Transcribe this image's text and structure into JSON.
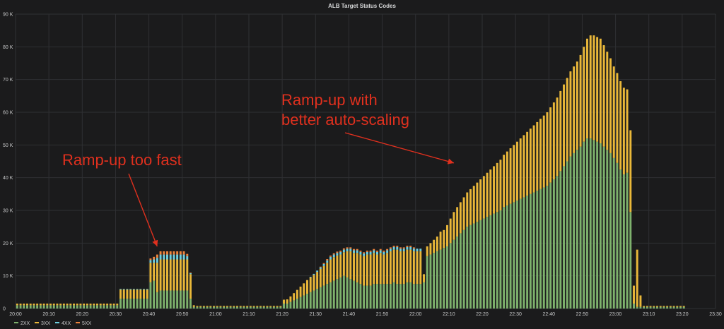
{
  "chart_data": {
    "type": "bar",
    "stacked": true,
    "title": "ALB Target Status Codes",
    "ylim": [
      0,
      90000
    ],
    "y_ticks": [
      0,
      10000,
      20000,
      30000,
      40000,
      50000,
      60000,
      70000,
      80000,
      90000
    ],
    "y_tick_labels": [
      "0",
      "10 K",
      "20 K",
      "30 K",
      "40 K",
      "50 K",
      "60 K",
      "70 K",
      "80 K",
      "90 K"
    ],
    "x_range_minutes": [
      0,
      210
    ],
    "x_ticks_minutes": [
      0,
      10,
      20,
      30,
      40,
      50,
      60,
      70,
      80,
      90,
      100,
      110,
      120,
      130,
      140,
      150,
      160,
      170,
      180,
      190,
      200,
      210
    ],
    "x_tick_labels": [
      "20:00",
      "20:10",
      "20:20",
      "20:30",
      "20:40",
      "20:50",
      "21:00",
      "21:10",
      "21:20",
      "21:30",
      "21:40",
      "21:50",
      "22:00",
      "22:10",
      "22:20",
      "22:30",
      "22:40",
      "22:50",
      "23:00",
      "23:10",
      "23:20",
      "23:30"
    ],
    "grid": true,
    "legend_position": "bottom-left",
    "series": [
      {
        "name": "2XX",
        "color": "#7eb26d",
        "values": [
          1000,
          1000,
          1000,
          1000,
          1000,
          1000,
          1000,
          1000,
          1000,
          1000,
          1000,
          1000,
          1000,
          1000,
          1000,
          1000,
          1000,
          1000,
          1000,
          1000,
          1000,
          1000,
          1000,
          1000,
          1000,
          1000,
          1000,
          1000,
          1000,
          1000,
          1000,
          3000,
          3000,
          3000,
          3000,
          3000,
          3000,
          3000,
          3000,
          3000,
          8000,
          8500,
          5000,
          5500,
          5500,
          5500,
          5500,
          5500,
          5500,
          5500,
          5500,
          5500,
          3000,
          500,
          500,
          500,
          500,
          500,
          500,
          500,
          500,
          500,
          500,
          500,
          500,
          500,
          500,
          500,
          500,
          500,
          500,
          500,
          500,
          500,
          500,
          500,
          500,
          500,
          500,
          500,
          1500,
          1500,
          2000,
          2500,
          3000,
          3500,
          4000,
          4500,
          5000,
          5500,
          6000,
          6500,
          7000,
          7500,
          8000,
          8500,
          9000,
          9500,
          10000,
          9500,
          9000,
          8500,
          8000,
          7500,
          7000,
          7000,
          7000,
          7500,
          7500,
          7500,
          7500,
          7500,
          7500,
          8000,
          7500,
          7500,
          7500,
          8000,
          8000,
          7500,
          7500,
          7500,
          8000,
          16000,
          16500,
          17000,
          17500,
          18000,
          18500,
          19000,
          20000,
          21000,
          22000,
          23000,
          24000,
          25000,
          25500,
          26000,
          26500,
          27000,
          27500,
          28000,
          28500,
          29000,
          29500,
          30000,
          31000,
          31500,
          32000,
          32500,
          33000,
          33500,
          34000,
          34500,
          35000,
          35500,
          36000,
          36500,
          37000,
          37500,
          38500,
          39500,
          40500,
          42000,
          43500,
          45000,
          46500,
          47500,
          48500,
          49500,
          51000,
          52000,
          52000,
          51500,
          51000,
          50500,
          49500,
          48500,
          47500,
          46000,
          44500,
          42500,
          41000,
          41500,
          29500,
          1500,
          500,
          500,
          500,
          500,
          500,
          500,
          500,
          500,
          500,
          500,
          500,
          500,
          500,
          500,
          500
        ],
        "values_note": ""
      },
      {
        "name": "3XX",
        "color": "#eab839",
        "values": [
          500,
          500,
          500,
          500,
          500,
          500,
          500,
          500,
          500,
          500,
          500,
          500,
          500,
          500,
          500,
          500,
          500,
          500,
          500,
          500,
          500,
          500,
          500,
          500,
          500,
          500,
          500,
          500,
          500,
          500,
          500,
          2800,
          2800,
          2800,
          2800,
          2800,
          2800,
          2800,
          2800,
          2800,
          6000,
          5500,
          9000,
          9500,
          9500,
          9500,
          9500,
          9500,
          9500,
          9500,
          9500,
          9500,
          7500,
          500,
          300,
          300,
          300,
          300,
          300,
          300,
          300,
          300,
          300,
          300,
          300,
          300,
          300,
          300,
          300,
          300,
          300,
          300,
          300,
          300,
          300,
          300,
          300,
          300,
          300,
          300,
          1200,
          1300,
          1700,
          2200,
          2700,
          3200,
          3700,
          4200,
          4500,
          4800,
          5200,
          5600,
          6000,
          6500,
          7000,
          7200,
          7200,
          7000,
          7200,
          8000,
          8500,
          8500,
          9000,
          9000,
          9000,
          9500,
          9500,
          9500,
          9000,
          9500,
          9000,
          9500,
          10000,
          10000,
          10500,
          10000,
          10000,
          10000,
          10000,
          10000,
          10000,
          10000,
          2500,
          3000,
          3500,
          4000,
          4500,
          5500,
          5500,
          6500,
          7500,
          8500,
          9000,
          9500,
          10000,
          10500,
          11000,
          11500,
          12000,
          12500,
          13000,
          13500,
          14000,
          14500,
          15000,
          15500,
          16000,
          16500,
          17000,
          17500,
          18000,
          18500,
          19000,
          19500,
          20000,
          20500,
          21000,
          21500,
          22000,
          22500,
          23000,
          23500,
          24000,
          24500,
          25000,
          25500,
          26000,
          26500,
          27000,
          28000,
          29000,
          30500,
          31500,
          32000,
          32000,
          32000,
          31000,
          30000,
          29000,
          28000,
          27500,
          27000,
          26500,
          25500,
          25000,
          5500,
          17500,
          3500,
          300,
          300,
          300,
          300,
          300,
          300,
          300,
          300,
          300,
          300,
          300,
          300,
          300,
          300,
          300,
          300
        ]
      },
      {
        "name": "4XX",
        "color": "#6ed0e0",
        "values": [
          0,
          0,
          0,
          0,
          0,
          0,
          0,
          0,
          0,
          0,
          0,
          0,
          0,
          0,
          0,
          0,
          0,
          0,
          0,
          0,
          0,
          0,
          0,
          0,
          0,
          0,
          0,
          0,
          0,
          0,
          0,
          200,
          200,
          200,
          200,
          200,
          200,
          200,
          200,
          200,
          800,
          1000,
          1500,
          1500,
          1500,
          1500,
          1500,
          1500,
          1500,
          1500,
          1500,
          1000,
          300,
          0,
          0,
          0,
          0,
          0,
          0,
          0,
          0,
          0,
          0,
          0,
          0,
          0,
          0,
          0,
          0,
          0,
          0,
          0,
          0,
          0,
          0,
          0,
          0,
          0,
          0,
          0,
          0,
          0,
          0,
          0,
          0,
          0,
          0,
          0,
          200,
          300,
          400,
          500,
          600,
          700,
          800,
          800,
          800,
          800,
          800,
          800,
          800,
          800,
          800,
          800,
          800,
          800,
          800,
          800,
          800,
          800,
          800,
          800,
          800,
          800,
          800,
          800,
          800,
          800,
          800,
          800,
          800,
          800,
          0,
          0,
          0,
          0,
          0,
          0,
          0,
          0,
          0,
          0,
          0,
          0,
          0,
          0,
          0,
          0,
          0,
          0,
          0,
          0,
          0,
          0,
          0,
          0,
          0,
          0,
          0,
          0,
          0,
          0,
          0,
          0,
          0,
          0,
          0,
          0,
          0,
          0,
          0,
          0,
          0,
          0,
          0,
          0,
          0,
          0,
          0,
          0,
          0,
          0,
          0,
          0,
          0,
          0,
          0,
          0,
          0,
          0,
          0,
          0,
          0,
          0,
          0,
          0,
          0,
          0,
          0,
          0,
          0,
          0,
          0,
          0,
          0,
          0,
          0,
          0,
          0,
          0,
          0,
          0,
          0,
          0,
          0,
          0,
          0,
          0,
          0,
          0,
          0,
          0,
          0,
          0,
          0,
          0,
          0
        ]
      },
      {
        "name": "5XX",
        "color": "#ef843c",
        "values": [
          0,
          0,
          0,
          0,
          0,
          0,
          0,
          0,
          0,
          0,
          0,
          0,
          0,
          0,
          0,
          0,
          0,
          0,
          0,
          0,
          0,
          0,
          0,
          0,
          0,
          0,
          0,
          0,
          0,
          0,
          0,
          0,
          0,
          0,
          0,
          0,
          0,
          0,
          0,
          0,
          500,
          800,
          1000,
          1000,
          1000,
          1000,
          1000,
          1000,
          1000,
          1000,
          1000,
          700,
          200,
          0,
          0,
          0,
          0,
          0,
          0,
          0,
          0,
          0,
          0,
          0,
          0,
          0,
          0,
          0,
          0,
          0,
          0,
          0,
          0,
          0,
          0,
          0,
          0,
          0,
          0,
          0,
          0,
          0,
          0,
          0,
          0,
          0,
          0,
          0,
          0,
          0,
          0,
          200,
          300,
          400,
          400,
          400,
          400,
          400,
          400,
          400,
          400,
          400,
          400,
          400,
          400,
          400,
          400,
          400,
          400,
          400,
          400,
          400,
          400,
          400,
          400,
          400,
          400,
          400,
          400,
          400,
          0,
          0,
          0,
          0,
          0,
          0,
          0,
          0,
          0,
          0,
          0,
          0,
          0,
          0,
          0,
          0,
          0,
          0,
          0,
          0,
          0,
          0,
          0,
          0,
          0,
          0,
          0,
          0,
          0,
          0,
          0,
          0,
          0,
          0,
          0,
          0,
          0,
          0,
          0,
          0,
          0,
          0,
          0,
          0,
          0,
          0,
          0,
          0,
          0,
          0,
          0,
          0,
          0,
          0,
          0,
          0,
          0,
          0,
          0,
          0,
          0,
          0,
          0,
          0,
          0,
          0,
          0,
          0,
          0,
          0,
          0,
          0,
          0,
          0,
          0,
          0,
          0,
          0,
          0,
          0,
          0,
          0,
          0,
          0,
          0,
          0,
          0,
          0,
          0,
          0,
          0,
          0,
          0,
          0,
          0,
          0,
          0
        ]
      }
    ],
    "annotations": [
      {
        "text": "Ramp-up too fast",
        "lines": [
          "Ramp-up too fast"
        ],
        "arrow_to_minute": 42,
        "arrow_to_value": 19000
      },
      {
        "text": "Ramp-up with better auto-scaling",
        "lines": [
          "Ramp-up with",
          "better auto-scaling"
        ],
        "arrow_to_minute": 131,
        "arrow_to_value": 44500
      }
    ]
  }
}
